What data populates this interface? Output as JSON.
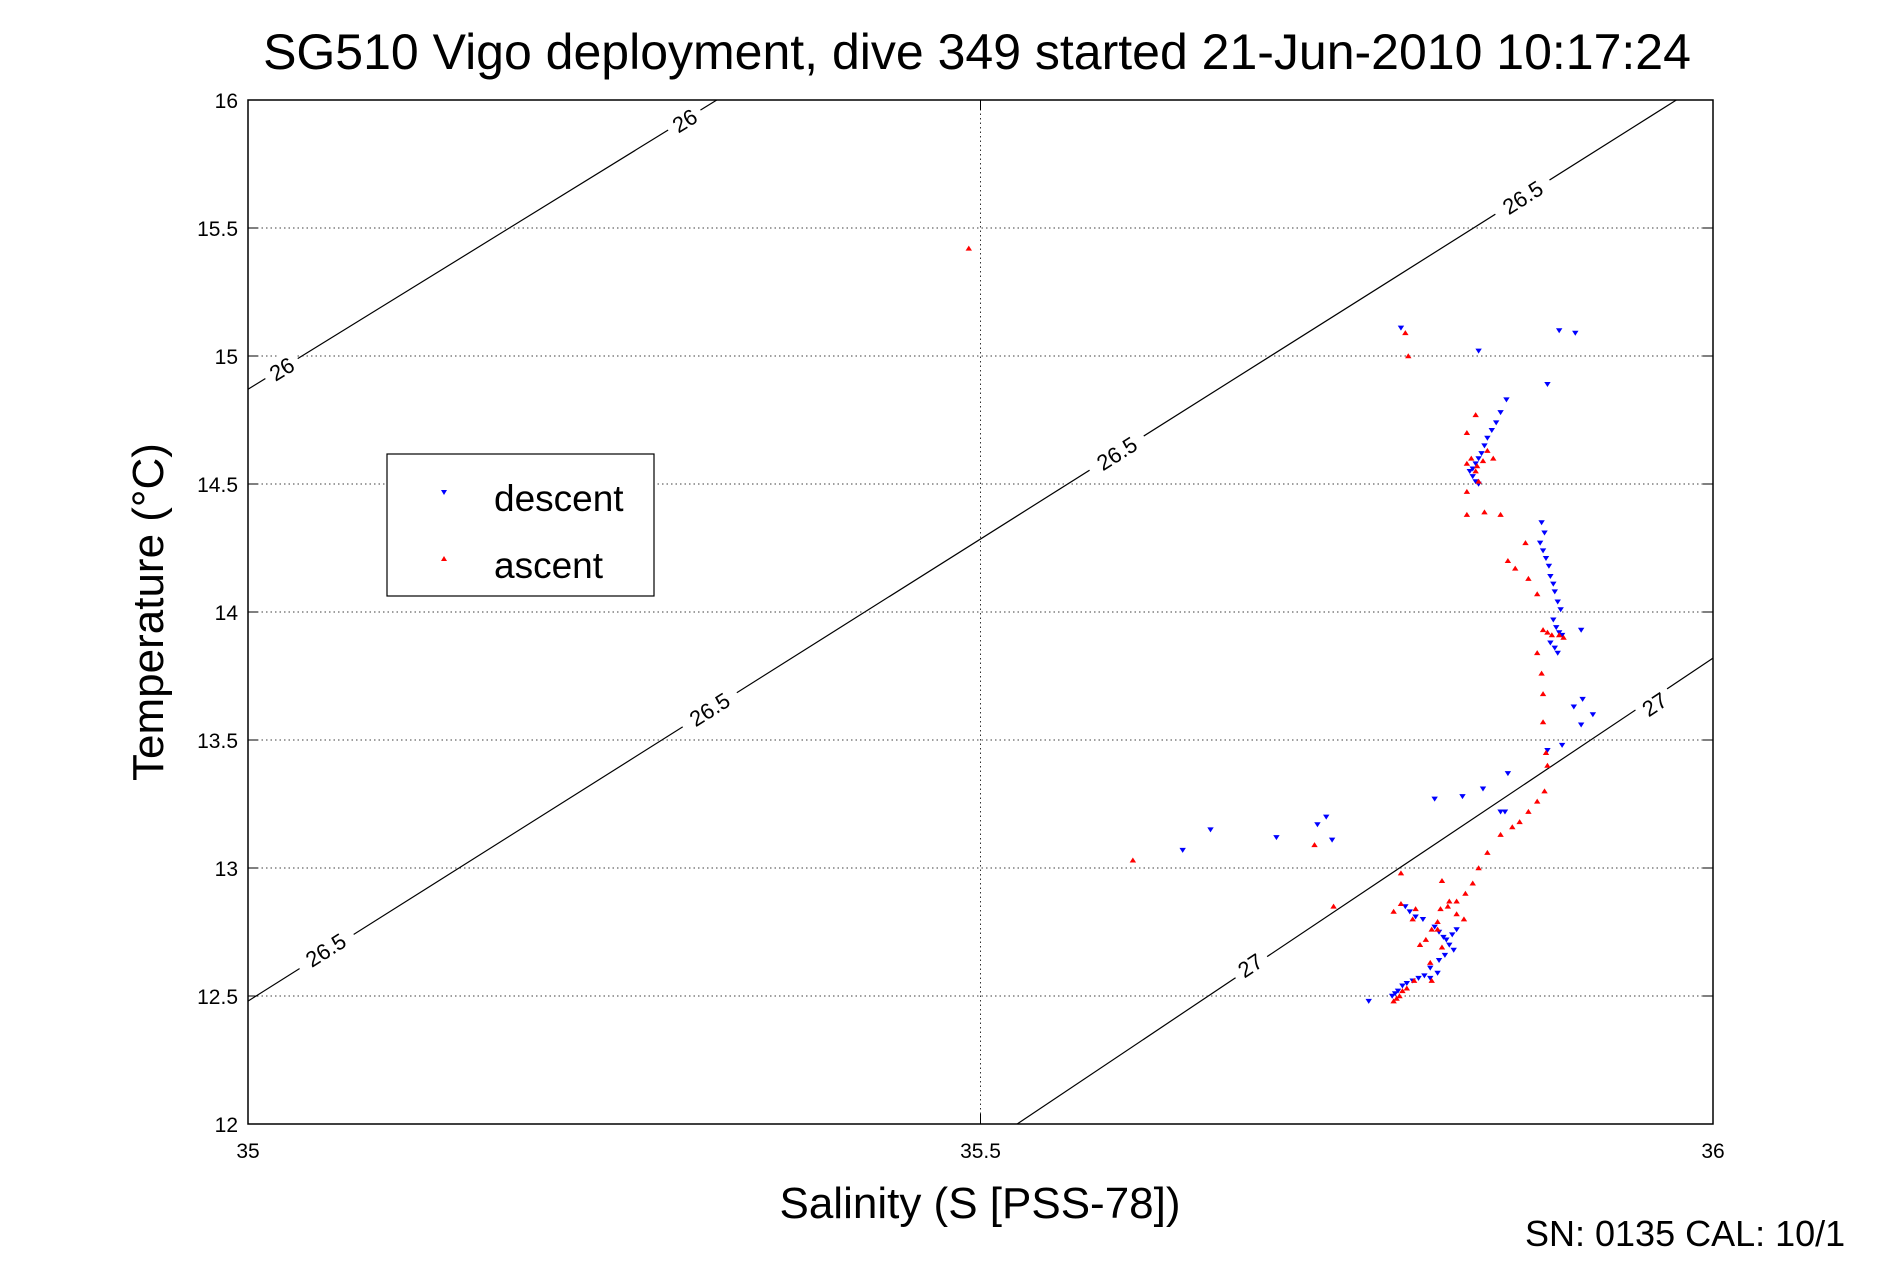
{
  "chart_data": {
    "type": "scatter",
    "title": "SG510 Vigo deployment, dive 349 started 21-Jun-2010 10:17:24",
    "xlabel": "Salinity (S [PSS-78])",
    "ylabel": "Temperature (°C)",
    "xlim": [
      35,
      36
    ],
    "ylim": [
      12,
      16
    ],
    "xticks": [
      "35",
      "35.5",
      "36"
    ],
    "yticks": [
      "12",
      "12.5",
      "13",
      "13.5",
      "14",
      "14.5",
      "15",
      "15.5",
      "16"
    ],
    "grid": true,
    "legend_position": "left-middle",
    "series": [
      {
        "name": "descent",
        "color": "#0000ff",
        "marker": "triangle-down",
        "points": [
          [
            35.787,
            15.11
          ],
          [
            35.84,
            15.02
          ],
          [
            35.895,
            15.1
          ],
          [
            35.906,
            15.09
          ],
          [
            35.887,
            14.89
          ],
          [
            35.859,
            14.83
          ],
          [
            35.855,
            14.78
          ],
          [
            35.852,
            14.74
          ],
          [
            35.849,
            14.71
          ],
          [
            35.846,
            14.68
          ],
          [
            35.844,
            14.65
          ],
          [
            35.842,
            14.62
          ],
          [
            35.84,
            14.6
          ],
          [
            35.838,
            14.58
          ],
          [
            35.836,
            14.56
          ],
          [
            35.834,
            14.55
          ],
          [
            35.836,
            14.53
          ],
          [
            35.838,
            14.51
          ],
          [
            35.84,
            14.5
          ],
          [
            35.883,
            14.35
          ],
          [
            35.885,
            14.31
          ],
          [
            35.882,
            14.27
          ],
          [
            35.884,
            14.24
          ],
          [
            35.886,
            14.21
          ],
          [
            35.888,
            14.18
          ],
          [
            35.889,
            14.14
          ],
          [
            35.891,
            14.11
          ],
          [
            35.892,
            14.08
          ],
          [
            35.894,
            14.04
          ],
          [
            35.896,
            14.01
          ],
          [
            35.891,
            13.97
          ],
          [
            35.893,
            13.94
          ],
          [
            35.895,
            13.92
          ],
          [
            35.897,
            13.91
          ],
          [
            35.889,
            13.88
          ],
          [
            35.892,
            13.86
          ],
          [
            35.894,
            13.84
          ],
          [
            35.91,
            13.93
          ],
          [
            35.911,
            13.66
          ],
          [
            35.905,
            13.63
          ],
          [
            35.91,
            13.56
          ],
          [
            35.918,
            13.6
          ],
          [
            35.897,
            13.48
          ],
          [
            35.887,
            13.46
          ],
          [
            35.86,
            13.37
          ],
          [
            35.843,
            13.31
          ],
          [
            35.829,
            13.28
          ],
          [
            35.81,
            13.27
          ],
          [
            35.855,
            13.22
          ],
          [
            35.858,
            13.22
          ],
          [
            35.638,
            13.07
          ],
          [
            35.657,
            13.15
          ],
          [
            35.702,
            13.12
          ],
          [
            35.73,
            13.17
          ],
          [
            35.736,
            13.2
          ],
          [
            35.74,
            13.11
          ],
          [
            35.79,
            12.85
          ],
          [
            35.793,
            12.83
          ],
          [
            35.797,
            12.81
          ],
          [
            35.802,
            12.8
          ],
          [
            35.81,
            12.77
          ],
          [
            35.813,
            12.75
          ],
          [
            35.816,
            12.73
          ],
          [
            35.818,
            12.72
          ],
          [
            35.82,
            12.7
          ],
          [
            35.822,
            12.74
          ],
          [
            35.825,
            12.76
          ],
          [
            35.823,
            12.68
          ],
          [
            35.817,
            12.66
          ],
          [
            35.813,
            12.64
          ],
          [
            35.807,
            12.61
          ],
          [
            35.803,
            12.58
          ],
          [
            35.799,
            12.57
          ],
          [
            35.795,
            12.56
          ],
          [
            35.791,
            12.55
          ],
          [
            35.788,
            12.54
          ],
          [
            35.785,
            12.52
          ],
          [
            35.783,
            12.51
          ],
          [
            35.781,
            12.5
          ],
          [
            35.765,
            12.48
          ],
          [
            35.812,
            12.59
          ],
          [
            35.807,
            12.57
          ]
        ]
      },
      {
        "name": "ascent",
        "color": "#ff0000",
        "marker": "triangle-up",
        "points": [
          [
            35.492,
            15.42
          ],
          [
            35.79,
            15.09
          ],
          [
            35.792,
            15.0
          ],
          [
            35.832,
            14.7
          ],
          [
            35.838,
            14.77
          ],
          [
            35.846,
            14.63
          ],
          [
            35.85,
            14.6
          ],
          [
            35.843,
            14.59
          ],
          [
            35.839,
            14.57
          ],
          [
            35.835,
            14.6
          ],
          [
            35.832,
            14.58
          ],
          [
            35.838,
            14.55
          ],
          [
            35.84,
            14.51
          ],
          [
            35.832,
            14.47
          ],
          [
            35.832,
            14.38
          ],
          [
            35.844,
            14.39
          ],
          [
            35.855,
            14.38
          ],
          [
            35.872,
            14.27
          ],
          [
            35.86,
            14.2
          ],
          [
            35.865,
            14.17
          ],
          [
            35.874,
            14.13
          ],
          [
            35.88,
            14.07
          ],
          [
            35.884,
            13.93
          ],
          [
            35.887,
            13.92
          ],
          [
            35.89,
            13.91
          ],
          [
            35.895,
            13.91
          ],
          [
            35.898,
            13.9
          ],
          [
            35.88,
            13.84
          ],
          [
            35.883,
            13.76
          ],
          [
            35.884,
            13.68
          ],
          [
            35.884,
            13.57
          ],
          [
            35.886,
            13.45
          ],
          [
            35.887,
            13.4
          ],
          [
            35.885,
            13.3
          ],
          [
            35.88,
            13.26
          ],
          [
            35.874,
            13.22
          ],
          [
            35.868,
            13.18
          ],
          [
            35.863,
            13.16
          ],
          [
            35.855,
            13.13
          ],
          [
            35.846,
            13.06
          ],
          [
            35.84,
            13.0
          ],
          [
            35.836,
            12.94
          ],
          [
            35.831,
            12.9
          ],
          [
            35.825,
            12.87
          ],
          [
            35.819,
            12.85
          ],
          [
            35.814,
            12.84
          ],
          [
            35.812,
            12.79
          ],
          [
            35.808,
            12.76
          ],
          [
            35.804,
            12.72
          ],
          [
            35.8,
            12.7
          ],
          [
            35.815,
            12.69
          ],
          [
            35.807,
            12.63
          ],
          [
            35.808,
            12.56
          ],
          [
            35.796,
            12.56
          ],
          [
            35.791,
            12.53
          ],
          [
            35.788,
            12.52
          ],
          [
            35.786,
            12.5
          ],
          [
            35.784,
            12.49
          ],
          [
            35.782,
            12.48
          ],
          [
            35.787,
            12.98
          ],
          [
            35.787,
            12.86
          ],
          [
            35.797,
            12.84
          ],
          [
            35.815,
            12.95
          ],
          [
            35.82,
            12.87
          ],
          [
            35.825,
            12.82
          ],
          [
            35.83,
            12.8
          ],
          [
            35.604,
            13.03
          ],
          [
            35.728,
            13.09
          ],
          [
            35.741,
            12.85
          ],
          [
            35.782,
            12.83
          ],
          [
            35.795,
            12.8
          ],
          [
            35.812,
            12.76
          ]
        ]
      }
    ],
    "contours": [
      {
        "label": "26",
        "segment": [
          [
            35.0,
            14.87
          ],
          [
            35.32,
            16.0
          ]
        ],
        "label_positions": [
          [
            35.023,
            14.95
          ],
          [
            35.298,
            15.92
          ]
        ]
      },
      {
        "label": "26.5",
        "segment": [
          [
            35.0,
            12.48
          ],
          [
            35.975,
            16.0
          ]
        ],
        "label_positions": [
          [
            35.053,
            12.68
          ],
          [
            35.315,
            13.62
          ],
          [
            35.593,
            14.62
          ],
          [
            35.87,
            15.62
          ]
        ]
      },
      {
        "label": "27",
        "segment": [
          [
            35.525,
            12.0
          ],
          [
            36.0,
            13.82
          ]
        ],
        "label_positions": [
          [
            35.684,
            12.62
          ],
          [
            35.96,
            13.64
          ]
        ]
      }
    ]
  },
  "footer": {
    "serial_text": "SN: 0135  CAL: 10/1"
  }
}
